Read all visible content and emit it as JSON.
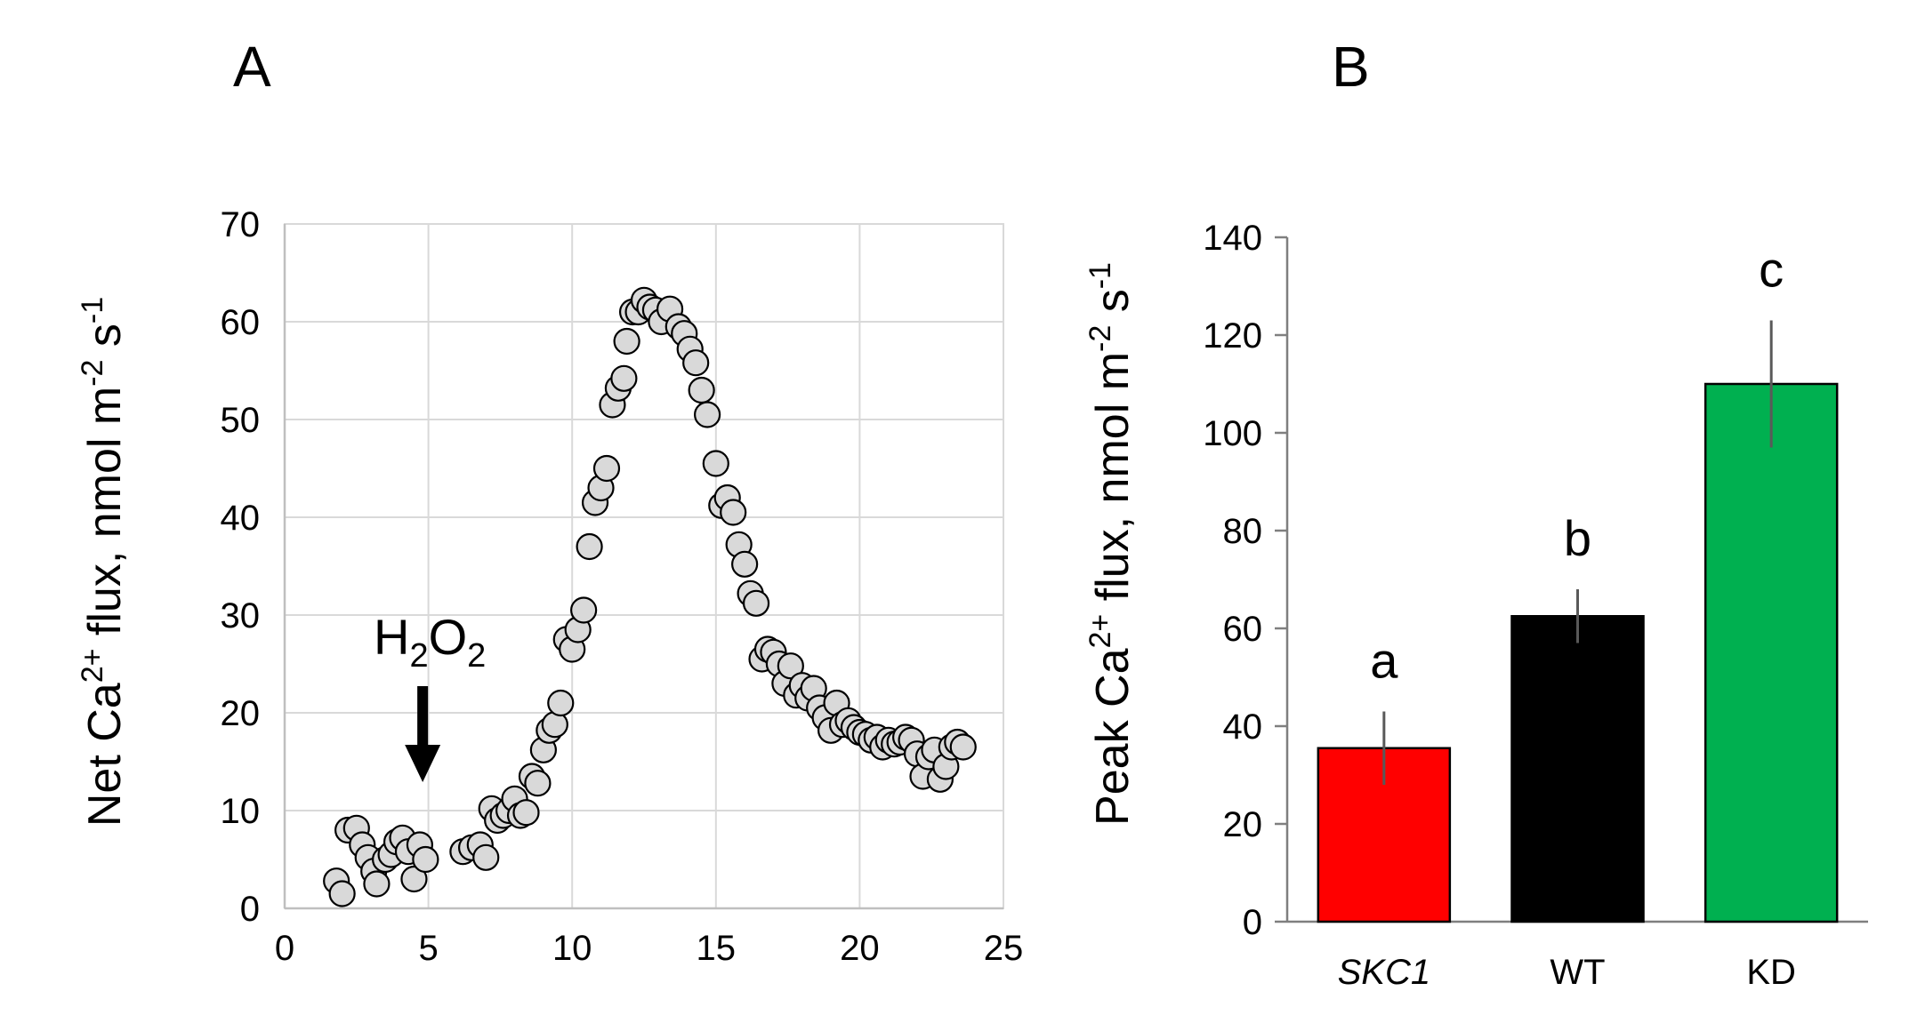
{
  "chart_data": [
    {
      "panel_label": "A",
      "type": "scatter",
      "title": "",
      "xlabel": "",
      "ylabel_parts": [
        "Net Ca",
        "2+",
        " flux, nmol m",
        "-2",
        " s",
        "-1"
      ],
      "xlim": [
        0,
        25
      ],
      "ylim": [
        0,
        70
      ],
      "xticks": [
        0,
        5,
        10,
        15,
        20,
        25
      ],
      "yticks": [
        0,
        10,
        20,
        30,
        40,
        50,
        60,
        70
      ],
      "grid": true,
      "annotation": {
        "main": "H",
        "sub1": "2",
        "mid": "O",
        "sub2": "2",
        "arrow_at_x": 4.8
      },
      "points": [
        {
          "x": 1.8,
          "y": 2.8
        },
        {
          "x": 2.0,
          "y": 1.5
        },
        {
          "x": 2.2,
          "y": 8.0
        },
        {
          "x": 2.5,
          "y": 8.2
        },
        {
          "x": 2.7,
          "y": 6.5
        },
        {
          "x": 2.9,
          "y": 5.2
        },
        {
          "x": 3.1,
          "y": 3.8
        },
        {
          "x": 3.2,
          "y": 2.5
        },
        {
          "x": 3.5,
          "y": 5.0
        },
        {
          "x": 3.7,
          "y": 5.5
        },
        {
          "x": 3.9,
          "y": 6.8
        },
        {
          "x": 4.1,
          "y": 7.2
        },
        {
          "x": 4.3,
          "y": 5.8
        },
        {
          "x": 4.5,
          "y": 3.0
        },
        {
          "x": 4.7,
          "y": 6.5
        },
        {
          "x": 4.9,
          "y": 5.0
        },
        {
          "x": 6.2,
          "y": 5.8
        },
        {
          "x": 6.5,
          "y": 6.2
        },
        {
          "x": 6.8,
          "y": 6.5
        },
        {
          "x": 7.0,
          "y": 5.2
        },
        {
          "x": 7.2,
          "y": 10.2
        },
        {
          "x": 7.4,
          "y": 9.0
        },
        {
          "x": 7.6,
          "y": 9.5
        },
        {
          "x": 7.8,
          "y": 10.0
        },
        {
          "x": 8.0,
          "y": 11.2
        },
        {
          "x": 8.2,
          "y": 9.5
        },
        {
          "x": 8.4,
          "y": 9.8
        },
        {
          "x": 8.6,
          "y": 13.5
        },
        {
          "x": 8.8,
          "y": 12.8
        },
        {
          "x": 9.0,
          "y": 16.2
        },
        {
          "x": 9.2,
          "y": 18.2
        },
        {
          "x": 9.4,
          "y": 18.8
        },
        {
          "x": 9.6,
          "y": 21.0
        },
        {
          "x": 9.8,
          "y": 27.5
        },
        {
          "x": 10.0,
          "y": 26.5
        },
        {
          "x": 10.2,
          "y": 28.5
        },
        {
          "x": 10.4,
          "y": 30.5
        },
        {
          "x": 10.6,
          "y": 37.0
        },
        {
          "x": 10.8,
          "y": 41.5
        },
        {
          "x": 11.0,
          "y": 43.0
        },
        {
          "x": 11.2,
          "y": 45.0
        },
        {
          "x": 11.4,
          "y": 51.5
        },
        {
          "x": 11.6,
          "y": 53.2
        },
        {
          "x": 11.8,
          "y": 54.2
        },
        {
          "x": 11.9,
          "y": 58.0
        },
        {
          "x": 12.1,
          "y": 61.0
        },
        {
          "x": 12.3,
          "y": 61.0
        },
        {
          "x": 12.5,
          "y": 62.2
        },
        {
          "x": 12.7,
          "y": 61.5
        },
        {
          "x": 12.9,
          "y": 61.2
        },
        {
          "x": 13.1,
          "y": 60.0
        },
        {
          "x": 13.4,
          "y": 61.3
        },
        {
          "x": 13.7,
          "y": 59.5
        },
        {
          "x": 13.9,
          "y": 58.8
        },
        {
          "x": 14.1,
          "y": 57.2
        },
        {
          "x": 14.3,
          "y": 55.8
        },
        {
          "x": 14.5,
          "y": 53.0
        },
        {
          "x": 14.7,
          "y": 50.5
        },
        {
          "x": 15.0,
          "y": 45.5
        },
        {
          "x": 15.2,
          "y": 41.2
        },
        {
          "x": 15.4,
          "y": 42.0
        },
        {
          "x": 15.6,
          "y": 40.5
        },
        {
          "x": 15.8,
          "y": 37.2
        },
        {
          "x": 16.0,
          "y": 35.2
        },
        {
          "x": 16.2,
          "y": 32.2
        },
        {
          "x": 16.4,
          "y": 31.2
        },
        {
          "x": 16.6,
          "y": 25.5
        },
        {
          "x": 16.8,
          "y": 26.5
        },
        {
          "x": 17.0,
          "y": 26.2
        },
        {
          "x": 17.2,
          "y": 25.0
        },
        {
          "x": 17.4,
          "y": 23.0
        },
        {
          "x": 17.6,
          "y": 24.8
        },
        {
          "x": 17.8,
          "y": 21.8
        },
        {
          "x": 18.0,
          "y": 22.8
        },
        {
          "x": 18.2,
          "y": 21.5
        },
        {
          "x": 18.4,
          "y": 22.5
        },
        {
          "x": 18.6,
          "y": 20.5
        },
        {
          "x": 18.8,
          "y": 19.5
        },
        {
          "x": 19.0,
          "y": 18.2
        },
        {
          "x": 19.2,
          "y": 21.0
        },
        {
          "x": 19.4,
          "y": 18.8
        },
        {
          "x": 19.6,
          "y": 19.2
        },
        {
          "x": 19.8,
          "y": 18.5
        },
        {
          "x": 20.0,
          "y": 18.0
        },
        {
          "x": 20.2,
          "y": 17.8
        },
        {
          "x": 20.4,
          "y": 17.2
        },
        {
          "x": 20.6,
          "y": 17.5
        },
        {
          "x": 20.8,
          "y": 16.5
        },
        {
          "x": 21.0,
          "y": 17.2
        },
        {
          "x": 21.2,
          "y": 16.8
        },
        {
          "x": 21.4,
          "y": 17.0
        },
        {
          "x": 21.6,
          "y": 17.5
        },
        {
          "x": 21.8,
          "y": 17.2
        },
        {
          "x": 22.0,
          "y": 15.8
        },
        {
          "x": 22.2,
          "y": 13.5
        },
        {
          "x": 22.4,
          "y": 15.5
        },
        {
          "x": 22.6,
          "y": 16.2
        },
        {
          "x": 22.8,
          "y": 13.2
        },
        {
          "x": 23.0,
          "y": 14.5
        },
        {
          "x": 23.2,
          "y": 16.5
        },
        {
          "x": 23.4,
          "y": 17.0
        },
        {
          "x": 23.6,
          "y": 16.5
        }
      ]
    },
    {
      "panel_label": "B",
      "type": "bar",
      "title": "",
      "xlabel": "",
      "ylabel_parts": [
        "Peak Ca",
        "2+",
        " flux, nmol m",
        "-2",
        " s",
        "-1"
      ],
      "ylim": [
        0,
        140
      ],
      "yticks": [
        0,
        20,
        40,
        60,
        80,
        100,
        120,
        140
      ],
      "grid": false,
      "categories": [
        "SKC1",
        "WT",
        "KD"
      ],
      "category_italic": [
        true,
        false,
        false
      ],
      "values": [
        35.5,
        62.5,
        110
      ],
      "errors": [
        7.5,
        5.5,
        13
      ],
      "colors": [
        "#ff0000",
        "#000000",
        "#00b050"
      ],
      "significance": [
        "a",
        "b",
        "c"
      ]
    }
  ]
}
